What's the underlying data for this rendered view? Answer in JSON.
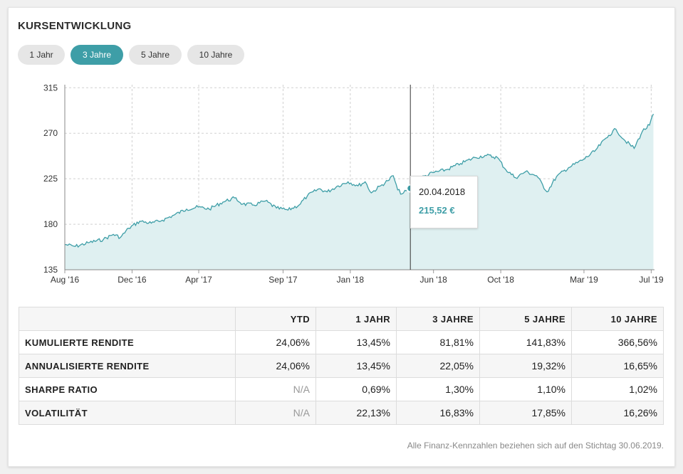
{
  "header": {
    "title": "KURSENTWICKLUNG"
  },
  "tabs": [
    {
      "label": "1 Jahr",
      "active": false
    },
    {
      "label": "3 Jahre",
      "active": true
    },
    {
      "label": "5 Jahre",
      "active": false
    },
    {
      "label": "10 Jahre",
      "active": false
    }
  ],
  "colors": {
    "accent": "#3e9ea7",
    "area": "#dff0f1",
    "grid": "#d0d0d0"
  },
  "chart_data": {
    "type": "area",
    "title": "",
    "xlabel": "",
    "ylabel": "",
    "ylim": [
      135,
      318
    ],
    "yticks": [
      135,
      180,
      225,
      270,
      315
    ],
    "xlim": [
      "2016-08-01",
      "2019-07-07"
    ],
    "xticks": [
      {
        "date": "2016-08-01",
        "label": "Aug '16"
      },
      {
        "date": "2016-12-01",
        "label": "Dec '16"
      },
      {
        "date": "2017-04-01",
        "label": "Apr '17"
      },
      {
        "date": "2017-09-01",
        "label": "Sep '17"
      },
      {
        "date": "2018-01-01",
        "label": "Jan '18"
      },
      {
        "date": "2018-06-01",
        "label": "Jun '18"
      },
      {
        "date": "2018-10-01",
        "label": "Oct '18"
      },
      {
        "date": "2019-03-01",
        "label": "Mar '19"
      },
      {
        "date": "2019-07-01",
        "label": "Jul '19"
      }
    ],
    "grid": true,
    "series": [
      {
        "points": [
          [
            "2016-08-01",
            160
          ],
          [
            "2016-08-20",
            158
          ],
          [
            "2016-09-15",
            162
          ],
          [
            "2016-10-10",
            165
          ],
          [
            "2016-10-28",
            170
          ],
          [
            "2016-11-10",
            167
          ],
          [
            "2016-11-25",
            176
          ],
          [
            "2016-12-15",
            183
          ],
          [
            "2017-01-05",
            181
          ],
          [
            "2017-01-25",
            184
          ],
          [
            "2017-02-15",
            189
          ],
          [
            "2017-03-10",
            195
          ],
          [
            "2017-03-31",
            197
          ],
          [
            "2017-04-20",
            195
          ],
          [
            "2017-05-15",
            202
          ],
          [
            "2017-06-05",
            206
          ],
          [
            "2017-06-20",
            200
          ],
          [
            "2017-07-10",
            199
          ],
          [
            "2017-07-31",
            203
          ],
          [
            "2017-08-20",
            196
          ],
          [
            "2017-09-10",
            194
          ],
          [
            "2017-09-30",
            199
          ],
          [
            "2017-10-15",
            208
          ],
          [
            "2017-11-05",
            215
          ],
          [
            "2017-11-20",
            212
          ],
          [
            "2017-12-10",
            218
          ],
          [
            "2017-12-28",
            222
          ],
          [
            "2018-01-15",
            218
          ],
          [
            "2018-01-28",
            222
          ],
          [
            "2018-02-08",
            211
          ],
          [
            "2018-02-25",
            218
          ],
          [
            "2018-03-10",
            223
          ],
          [
            "2018-03-20",
            228
          ],
          [
            "2018-03-28",
            214
          ],
          [
            "2018-04-05",
            210
          ],
          [
            "2018-04-20",
            215.52
          ],
          [
            "2018-05-10",
            226
          ],
          [
            "2018-05-31",
            231
          ],
          [
            "2018-06-25",
            234
          ],
          [
            "2018-07-20",
            240
          ],
          [
            "2018-08-15",
            246
          ],
          [
            "2018-09-05",
            248
          ],
          [
            "2018-09-25",
            246
          ],
          [
            "2018-10-10",
            234
          ],
          [
            "2018-10-28",
            226
          ],
          [
            "2018-11-15",
            232
          ],
          [
            "2018-12-05",
            228
          ],
          [
            "2018-12-24",
            212
          ],
          [
            "2019-01-10",
            227
          ],
          [
            "2019-02-01",
            236
          ],
          [
            "2019-02-28",
            244
          ],
          [
            "2019-03-20",
            252
          ],
          [
            "2019-04-15",
            268
          ],
          [
            "2019-04-28",
            274
          ],
          [
            "2019-05-12",
            264
          ],
          [
            "2019-05-31",
            255
          ],
          [
            "2019-06-15",
            272
          ],
          [
            "2019-06-28",
            278
          ],
          [
            "2019-07-05",
            289
          ]
        ]
      }
    ],
    "highlight": {
      "date": "2018-04-20",
      "value": 215.52
    }
  },
  "tooltip": {
    "date": "20.04.2018",
    "value": "215,52 €"
  },
  "table": {
    "headers": [
      "",
      "YTD",
      "1 JAHR",
      "3 JAHRE",
      "5 JAHRE",
      "10 JAHRE"
    ],
    "rows": [
      {
        "label": "KUMULIERTE RENDITE",
        "values": [
          "24,06%",
          "13,45%",
          "81,81%",
          "141,83%",
          "366,56%"
        ]
      },
      {
        "label": "ANNUALISIERTE RENDITE",
        "values": [
          "24,06%",
          "13,45%",
          "22,05%",
          "19,32%",
          "16,65%"
        ]
      },
      {
        "label": "SHARPE RATIO",
        "values": [
          "N/A",
          "0,69%",
          "1,30%",
          "1,10%",
          "1,02%"
        ]
      },
      {
        "label": "VOLATILITÄT",
        "values": [
          "N/A",
          "22,13%",
          "16,83%",
          "17,85%",
          "16,26%"
        ]
      }
    ]
  },
  "footer": {
    "note": "Alle Finanz-Kennzahlen beziehen sich auf den Stichtag 30.06.2019."
  }
}
